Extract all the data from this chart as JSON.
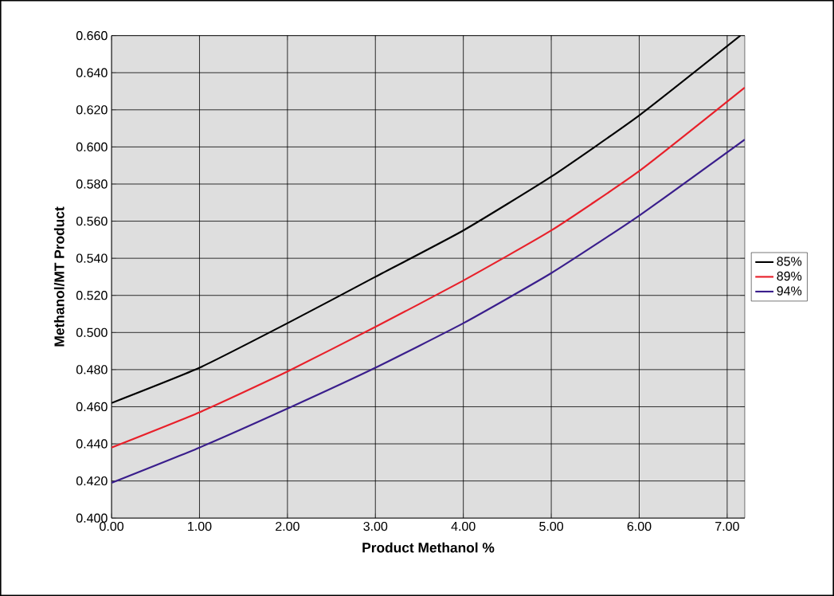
{
  "chart_data": {
    "type": "line",
    "xlabel": "Product Methanol %",
    "ylabel": "Methanol/MT Product",
    "x": [
      0,
      1,
      2,
      3,
      4,
      5,
      6,
      7.2
    ],
    "series": [
      {
        "name": "85%",
        "color": "#000000",
        "x": [
          0,
          1,
          2,
          3,
          4,
          5,
          6,
          7.15
        ],
        "values": [
          0.462,
          0.481,
          0.505,
          0.53,
          0.555,
          0.584,
          0.617,
          0.66
        ]
      },
      {
        "name": "89%",
        "color": "#e8202a",
        "values": [
          0.438,
          0.457,
          0.479,
          0.503,
          0.528,
          0.555,
          0.587,
          0.632
        ]
      },
      {
        "name": "94%",
        "color": "#3a1e8c",
        "values": [
          0.419,
          0.438,
          0.459,
          0.481,
          0.505,
          0.532,
          0.563,
          0.604
        ]
      }
    ],
    "xlim": [
      0,
      7.2
    ],
    "ylim": [
      0.4,
      0.66
    ],
    "xticks": [
      {
        "value": 0,
        "label": "0.00"
      },
      {
        "value": 1,
        "label": "1.00"
      },
      {
        "value": 2,
        "label": "2.00"
      },
      {
        "value": 3,
        "label": "3.00"
      },
      {
        "value": 4,
        "label": "4.00"
      },
      {
        "value": 5,
        "label": "5.00"
      },
      {
        "value": 6,
        "label": "6.00"
      },
      {
        "value": 7,
        "label": "7.00"
      }
    ],
    "yticks": [
      {
        "value": 0.4,
        "label": "0.400"
      },
      {
        "value": 0.42,
        "label": "0.420"
      },
      {
        "value": 0.44,
        "label": "0.440"
      },
      {
        "value": 0.46,
        "label": "0.460"
      },
      {
        "value": 0.48,
        "label": "0.480"
      },
      {
        "value": 0.5,
        "label": "0.500"
      },
      {
        "value": 0.52,
        "label": "0.520"
      },
      {
        "value": 0.54,
        "label": "0.540"
      },
      {
        "value": 0.56,
        "label": "0.560"
      },
      {
        "value": 0.58,
        "label": "0.580"
      },
      {
        "value": 0.6,
        "label": "0.600"
      },
      {
        "value": 0.62,
        "label": "0.620"
      },
      {
        "value": 0.64,
        "label": "0.640"
      },
      {
        "value": 0.66,
        "label": "0.660"
      }
    ],
    "grid": true,
    "legend": "right",
    "marker": "none",
    "line_style": "solid"
  }
}
